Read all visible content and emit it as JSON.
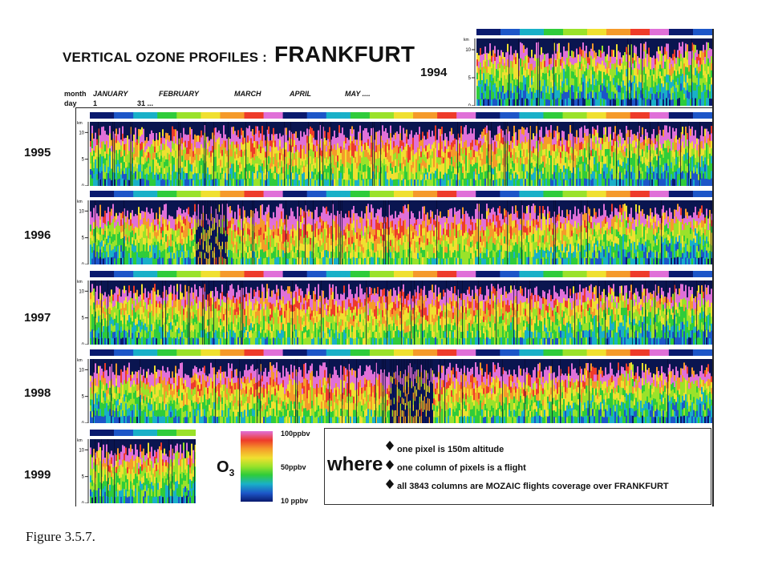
{
  "header": {
    "title": "VERTICAL OZONE PROFILES :",
    "city": "FRANKFURT",
    "month_label": "month",
    "day_label": "day",
    "months": [
      "JANUARY",
      "FEBRUARY",
      "MARCH",
      "APRIL",
      "MAY ...."
    ],
    "day_first": "1",
    "day_last": "31 ..."
  },
  "axis": {
    "unit": "km",
    "ticks": [
      "10",
      "5",
      "0"
    ]
  },
  "panels": [
    {
      "year": "1994"
    },
    {
      "year": "1995"
    },
    {
      "year": "1996"
    },
    {
      "year": "1997"
    },
    {
      "year": "1998"
    },
    {
      "year": "1999"
    }
  ],
  "legend": {
    "symbol": "O",
    "symbol_sub": "3",
    "colorbar_labels": [
      "100ppbv",
      "50ppbv",
      "10 ppbv"
    ],
    "where": "where",
    "bullets": [
      "one pixel is 150m altitude",
      "one column of pixels is a flight",
      "all 3843 columns are MOZAIC flights coverage over FRANKFURT"
    ]
  },
  "caption": "Figure  3.5.7.",
  "chart_data": {
    "type": "heatmap",
    "title": "VERTICAL OZONE PROFILES : FRANKFURT",
    "x": "flight columns ordered by day of year (JANUARY ... MAY ....)",
    "ylabel": "km",
    "ylim": [
      0,
      12
    ],
    "yticks": [
      0,
      5,
      10
    ],
    "years": [
      "1994",
      "1995",
      "1996",
      "1997",
      "1998",
      "1999"
    ],
    "color_scale": {
      "min_label": "10 ppbv",
      "mid_label": "50ppbv",
      "max_label": "100ppbv",
      "colors": [
        "#0a1a6e",
        "#1d56c8",
        "#19b0c8",
        "#2fcc3a",
        "#9ae22a",
        "#f0e030",
        "#f59a2a",
        "#ee3b2a",
        "#e070d8"
      ]
    },
    "total_flights": 3843,
    "pixel_altitude_m": 150
  }
}
